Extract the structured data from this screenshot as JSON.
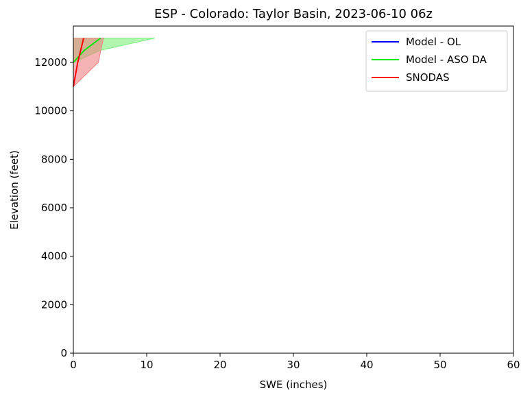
{
  "chart_data": {
    "type": "line",
    "title": "ESP - Colorado: Taylor Basin, 2023-06-10 06z",
    "xlabel": "SWE (inches)",
    "ylabel": "Elevation (feet)",
    "xlim": [
      0,
      60
    ],
    "ylim": [
      0,
      13500
    ],
    "xticks": [
      0,
      10,
      20,
      30,
      40,
      50,
      60
    ],
    "yticks": [
      0,
      2000,
      4000,
      6000,
      8000,
      10000,
      12000
    ],
    "grid": false,
    "legend_position": "top-right",
    "series": [
      {
        "name": "Model - OL",
        "color": "#0000ff",
        "x": [],
        "y": [],
        "band": null
      },
      {
        "name": "Model - ASO DA",
        "color": "#00e600",
        "x": [
          0.0,
          1.5,
          3.7
        ],
        "y": [
          12000,
          12500,
          13000
        ],
        "band": {
          "color": "#7cf07c",
          "x_low": [
            0.0,
            0.0,
            0.0
          ],
          "x_high": [
            0.0,
            3.7,
            11.1
          ],
          "y": [
            12000,
            12500,
            13000
          ]
        }
      },
      {
        "name": "SNODAS",
        "color": "#ff0000",
        "x": [
          0.0,
          0.6,
          1.4
        ],
        "y": [
          11000,
          12000,
          13000
        ],
        "band": {
          "color": "#f08080",
          "x_low": [
            0.0,
            0.0,
            0.0
          ],
          "x_high": [
            0.0,
            3.4,
            4.1
          ],
          "y": [
            11000,
            12000,
            13000
          ]
        }
      }
    ]
  }
}
